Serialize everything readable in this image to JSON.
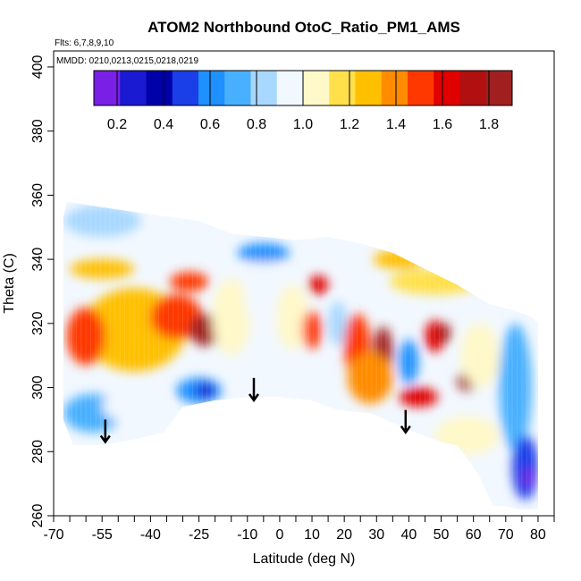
{
  "chart_data": {
    "type": "heatmap",
    "title": "ATOM2 Northbound OtoC_Ratio_PM1_AMS",
    "flights_note": "Flts: 6,7,8,9,10",
    "dates_note": "MMDD: 0210,0213,0215,0218,0219",
    "xlabel": "Latitude (deg N)",
    "ylabel": "Theta (C)",
    "xlim": [
      -70,
      85
    ],
    "ylim": [
      260,
      405
    ],
    "x_ticks": [
      -70,
      -55,
      -40,
      -25,
      -10,
      0,
      10,
      20,
      30,
      40,
      50,
      60,
      70,
      80
    ],
    "x_minor_ticks": [
      -65,
      -60,
      -50,
      -45,
      -35,
      -30,
      -20,
      -15,
      -5,
      5,
      15,
      25,
      35,
      45,
      55,
      65,
      75,
      85
    ],
    "y_ticks": [
      260,
      280,
      300,
      320,
      340,
      360,
      380,
      400
    ],
    "colorbar": {
      "range": [
        0.1,
        1.9
      ],
      "tick_values": [
        0.2,
        0.4,
        0.6,
        0.8,
        1.0,
        1.2,
        1.4,
        1.6,
        1.8
      ],
      "tick_labels": [
        "0.2",
        "0.4",
        "0.6",
        "0.8",
        "1.0",
        "1.2",
        "1.4",
        "1.6",
        "1.8"
      ],
      "colors": [
        "#7a1fe6",
        "#1a1ad2",
        "#0000a8",
        "#1a3ee8",
        "#1e90ff",
        "#49b0ff",
        "#a8d8ff",
        "#f2f8ff",
        "#fff8c8",
        "#ffe04a",
        "#ffc000",
        "#ff8c00",
        "#ff3800",
        "#e00000",
        "#b01010",
        "#a02020"
      ]
    },
    "arrows": [
      {
        "lat": -54,
        "theta_top": 290,
        "theta_bottom": 283
      },
      {
        "lat": -8,
        "theta_top": 303,
        "theta_bottom": 296
      },
      {
        "lat": 39,
        "theta_top": 293,
        "theta_bottom": 286
      }
    ],
    "domain_outline": [
      [
        -67,
        353
      ],
      [
        -66,
        358
      ],
      [
        -60,
        357
      ],
      [
        -40,
        354
      ],
      [
        -25,
        352
      ],
      [
        -15,
        348
      ],
      [
        -5,
        347
      ],
      [
        5,
        346
      ],
      [
        15,
        347
      ],
      [
        25,
        345
      ],
      [
        35,
        342
      ],
      [
        45,
        337
      ],
      [
        55,
        332
      ],
      [
        65,
        326
      ],
      [
        73,
        324
      ],
      [
        78,
        322
      ],
      [
        80,
        320
      ],
      [
        80,
        262
      ],
      [
        74,
        262
      ],
      [
        70,
        263
      ],
      [
        66,
        263
      ],
      [
        62,
        272
      ],
      [
        58,
        278
      ],
      [
        55,
        282
      ],
      [
        50,
        283
      ],
      [
        42,
        286
      ],
      [
        35,
        289
      ],
      [
        28,
        292
      ],
      [
        18,
        293
      ],
      [
        10,
        296
      ],
      [
        0,
        297
      ],
      [
        -10,
        297
      ],
      [
        -20,
        296
      ],
      [
        -30,
        294
      ],
      [
        -36,
        286
      ],
      [
        -44,
        284
      ],
      [
        -55,
        282
      ],
      [
        -64,
        282
      ],
      [
        -67,
        290
      ]
    ],
    "patches": [
      {
        "lat": -45,
        "theta": 318,
        "rx": 16,
        "ry": 13,
        "value": 1.3
      },
      {
        "lat": -32,
        "theta": 322,
        "rx": 8,
        "ry": 7,
        "value": 1.55
      },
      {
        "lat": -23,
        "theta": 318,
        "rx": 5,
        "ry": 5,
        "value": 1.85
      },
      {
        "lat": -60,
        "theta": 316,
        "rx": 6,
        "ry": 9,
        "value": 1.45
      },
      {
        "lat": -55,
        "theta": 337,
        "rx": 10,
        "ry": 3,
        "value": 1.25
      },
      {
        "lat": -28,
        "theta": 333,
        "rx": 6,
        "ry": 3,
        "value": 1.5
      },
      {
        "lat": -55,
        "theta": 352,
        "rx": 12,
        "ry": 5,
        "value": 0.8
      },
      {
        "lat": -58,
        "theta": 292,
        "rx": 9,
        "ry": 6,
        "value": 0.75
      },
      {
        "lat": -45,
        "theta": 294,
        "rx": 10,
        "ry": 5,
        "value": 0.9
      },
      {
        "lat": -25,
        "theta": 299,
        "rx": 7,
        "ry": 4,
        "value": 0.65
      },
      {
        "lat": -23,
        "theta": 299,
        "rx": 3,
        "ry": 2.5,
        "value": 0.3
      },
      {
        "lat": -15,
        "theta": 322,
        "rx": 6,
        "ry": 12,
        "value": 1.0
      },
      {
        "lat": -5,
        "theta": 330,
        "rx": 6,
        "ry": 12,
        "value": 0.9
      },
      {
        "lat": 4,
        "theta": 322,
        "rx": 5,
        "ry": 10,
        "value": 1.1
      },
      {
        "lat": 10,
        "theta": 318,
        "rx": 3,
        "ry": 6,
        "value": 1.45
      },
      {
        "lat": 12,
        "theta": 332,
        "rx": 3,
        "ry": 3,
        "value": 1.6
      },
      {
        "lat": 18,
        "theta": 320,
        "rx": 3,
        "ry": 7,
        "value": 0.85
      },
      {
        "lat": 24,
        "theta": 313,
        "rx": 4,
        "ry": 10,
        "value": 1.45
      },
      {
        "lat": 32,
        "theta": 311,
        "rx": 3,
        "ry": 8,
        "value": 1.85
      },
      {
        "lat": 28,
        "theta": 303,
        "rx": 7,
        "ry": 8,
        "value": 1.35
      },
      {
        "lat": 40,
        "theta": 308,
        "rx": 3,
        "ry": 7,
        "value": 0.55
      },
      {
        "lat": 48,
        "theta": 316,
        "rx": 3,
        "ry": 5,
        "value": 1.6
      },
      {
        "lat": 51,
        "theta": 317,
        "rx": 2,
        "ry": 3,
        "value": 1.85
      },
      {
        "lat": 58,
        "theta": 302,
        "rx": 3,
        "ry": 3,
        "value": 1.8
      },
      {
        "lat": 43,
        "theta": 297,
        "rx": 6,
        "ry": 3,
        "value": 1.65
      },
      {
        "lat": 62,
        "theta": 310,
        "rx": 6,
        "ry": 10,
        "value": 1.05
      },
      {
        "lat": 73,
        "theta": 300,
        "rx": 5,
        "ry": 20,
        "value": 0.7
      },
      {
        "lat": 76,
        "theta": 275,
        "rx": 4,
        "ry": 10,
        "value": 0.5
      },
      {
        "lat": 77,
        "theta": 272,
        "rx": 1.5,
        "ry": 3,
        "value": 0.15
      },
      {
        "lat": 58,
        "theta": 285,
        "rx": 10,
        "ry": 6,
        "value": 1.1
      },
      {
        "lat": 48,
        "theta": 333,
        "rx": 14,
        "ry": 4,
        "value": 1.15
      },
      {
        "lat": 37,
        "theta": 340,
        "rx": 8,
        "ry": 3,
        "value": 1.25
      },
      {
        "lat": -5,
        "theta": 342,
        "rx": 8,
        "ry": 3,
        "value": 0.55
      }
    ],
    "background_value": 0.95
  }
}
